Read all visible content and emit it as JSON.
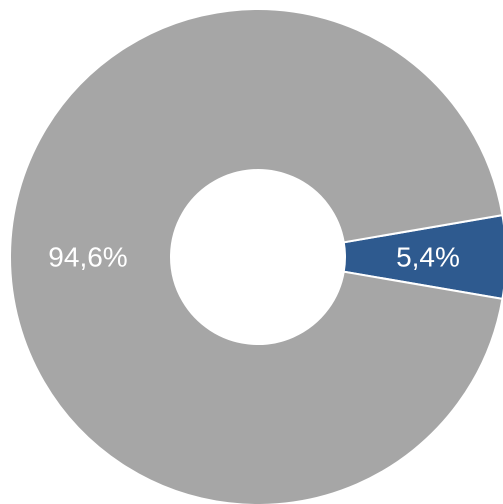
{
  "chart_data": {
    "type": "pie",
    "variant": "donut",
    "slices": [
      {
        "label": "5,4%",
        "value": 5.4,
        "color": "#2E5A8F"
      },
      {
        "label": "94,6%",
        "value": 94.6,
        "color": "#A6A6A6"
      }
    ],
    "legend": "none"
  }
}
